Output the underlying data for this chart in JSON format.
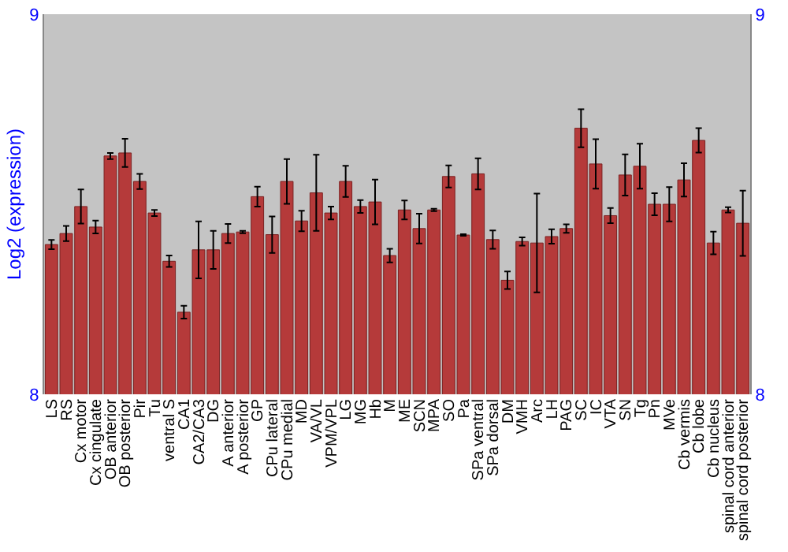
{
  "chart_data": {
    "type": "bar",
    "ylabel": "Log2 (expression)",
    "categories": [
      "LS",
      "RS",
      "Cx motor",
      "Cx cingulate",
      "OB anterior",
      "OB posterior",
      "Pir",
      "Tu",
      "ventral S",
      "CA1",
      "CA2/CA3",
      "DG",
      "A anterior",
      "A posterior",
      "GP",
      "CPu lateral",
      "CPu medial",
      "MD",
      "VA/VL",
      "VPM/VPL",
      "LG",
      "MG",
      "Hb",
      "M",
      "ME",
      "SCN",
      "MPA",
      "SO",
      "Pa",
      "SPa ventral",
      "SPa dorsal",
      "DM",
      "VMH",
      "Arc",
      "LH",
      "PAG",
      "SC",
      "IC",
      "VTA",
      "SN",
      "Tg",
      "Pn",
      "MVe",
      "Cb vermis",
      "Cb lobe",
      "Cb nucleus",
      "spinal cord anterior",
      "spinal cord posterior"
    ],
    "values": [
      8.394,
      8.423,
      8.494,
      8.44,
      8.627,
      8.635,
      8.56,
      8.477,
      8.35,
      8.216,
      8.38,
      8.38,
      8.423,
      8.427,
      8.52,
      8.42,
      8.56,
      8.456,
      8.53,
      8.477,
      8.56,
      8.494,
      8.506,
      8.365,
      8.485,
      8.436,
      8.485,
      8.573,
      8.419,
      8.58,
      8.407,
      8.3,
      8.402,
      8.398,
      8.415,
      8.436,
      8.7,
      8.606,
      8.47,
      8.577,
      8.6,
      8.5,
      8.5,
      8.564,
      8.668,
      8.398,
      8.485,
      8.45
    ],
    "errors": [
      0.012,
      0.02,
      0.045,
      0.017,
      0.008,
      0.037,
      0.02,
      0.008,
      0.015,
      0.017,
      0.075,
      0.05,
      0.025,
      0.003,
      0.026,
      0.048,
      0.059,
      0.027,
      0.1,
      0.017,
      0.041,
      0.017,
      0.059,
      0.018,
      0.025,
      0.039,
      0.003,
      0.029,
      0.002,
      0.041,
      0.024,
      0.023,
      0.011,
      0.13,
      0.019,
      0.011,
      0.05,
      0.065,
      0.02,
      0.054,
      0.059,
      0.029,
      0.045,
      0.044,
      0.032,
      0.03,
      0.007,
      0.086
    ],
    "color": "#b53a3a",
    "ylim": [
      8,
      9
    ],
    "yticks": [
      8,
      9
    ],
    "y2lim": [
      8,
      9
    ],
    "y2ticks": [
      8,
      9
    ],
    "grid": false,
    "legend": false
  }
}
